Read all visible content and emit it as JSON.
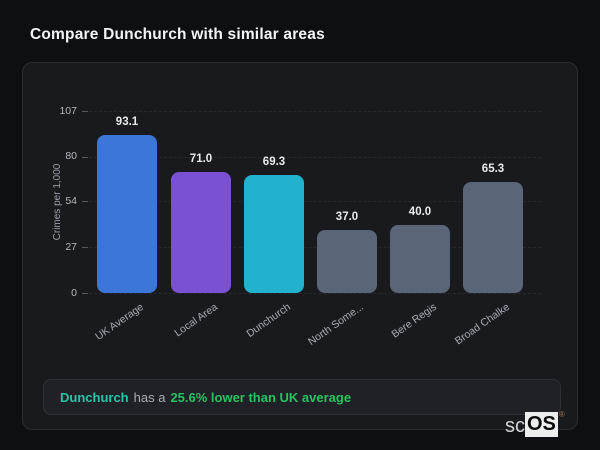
{
  "page": {
    "title": "Compare Dunchurch with similar areas"
  },
  "chart_data": {
    "type": "bar",
    "title": "Compare Dunchurch with similar areas",
    "xlabel": "",
    "ylabel": "Crimes per 1,000",
    "ylim": [
      0,
      107
    ],
    "yticks": [
      0,
      27,
      54,
      80,
      107
    ],
    "grid": "horizontal-dashed",
    "legend": "none",
    "categories": [
      "UK Average",
      "Local Area",
      "Dunchurch",
      "North Some...",
      "Bere Regis",
      "Broad Chalke"
    ],
    "values": [
      93.1,
      71.0,
      69.3,
      37.0,
      40.0,
      65.3
    ],
    "value_labels": [
      "93.1",
      "71.0",
      "69.3",
      "37.0",
      "40.0",
      "65.3"
    ],
    "bar_colors": [
      "#3b76d8",
      "#7b51d3",
      "#22b2cd",
      "#5a6578",
      "#5a6578",
      "#5a6578"
    ]
  },
  "note": {
    "area": "Dunchurch",
    "middle": "has a",
    "highlight": "25.6% lower than UK average"
  },
  "logo": {
    "prefix": "sc",
    "suffix": "OS",
    "registered": "®"
  },
  "colors": {
    "background": "#0e0f12",
    "card_background": "#191a1e",
    "card_border": "#2a2d33",
    "title_text": "#f3f5f7",
    "tick_text": "#b4b8bf",
    "axis_label_text": "#9aa0a8",
    "value_label_text": "#e9ebee",
    "note_area_text": "#2bc4a8",
    "note_highlight_text": "#25c45f"
  }
}
